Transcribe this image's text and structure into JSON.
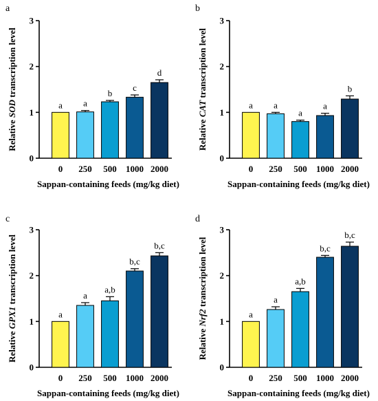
{
  "chart_data": [
    {
      "type": "bar",
      "panel": "a",
      "categories": [
        "0",
        "250",
        "500",
        "1000",
        "2000"
      ],
      "values": [
        1.0,
        1.01,
        1.23,
        1.33,
        1.65
      ],
      "errors": [
        0.0,
        0.03,
        0.03,
        0.05,
        0.06
      ],
      "labels": [
        "a",
        "a",
        "b",
        "c",
        "d"
      ],
      "ylabel_pre": "Relative ",
      "ylabel_gene": "SOD",
      "ylabel_post": " transcription level",
      "xlabel": "Sappan-containing feeds (mg/kg diet)",
      "ylim": [
        0,
        3
      ],
      "yticks": [
        "0",
        "1",
        "2",
        "3"
      ],
      "colors": [
        "#FFF44F",
        "#55CCF6",
        "#0A9ED1",
        "#0A5A92",
        "#0A3560"
      ]
    },
    {
      "type": "bar",
      "panel": "b",
      "categories": [
        "0",
        "250",
        "500",
        "1000",
        "2000"
      ],
      "values": [
        1.0,
        0.97,
        0.8,
        0.93,
        1.29
      ],
      "errors": [
        0.0,
        0.03,
        0.03,
        0.05,
        0.07
      ],
      "labels": [
        "a",
        "a",
        "a",
        "a",
        "b"
      ],
      "ylabel_pre": "Relative ",
      "ylabel_gene": "CAT",
      "ylabel_post": " transcription level",
      "xlabel": "Sappan-containing feeds (mg/kg diet)",
      "ylim": [
        0,
        3
      ],
      "yticks": [
        "0",
        "1",
        "2",
        "3"
      ],
      "colors": [
        "#FFF44F",
        "#55CCF6",
        "#0A9ED1",
        "#0A5A92",
        "#0A3560"
      ]
    },
    {
      "type": "bar",
      "panel": "c",
      "categories": [
        "0",
        "250",
        "500",
        "1000",
        "2000"
      ],
      "values": [
        1.0,
        1.35,
        1.45,
        2.1,
        2.43
      ],
      "errors": [
        0.0,
        0.06,
        0.09,
        0.05,
        0.07
      ],
      "labels": [
        "a",
        "a",
        "a,b",
        "b,c",
        "b,c"
      ],
      "ylabel_pre": "Relative ",
      "ylabel_gene": "GPX1",
      "ylabel_post": " transcription level",
      "xlabel": "Sappan-containing feeds (mg/kg diet)",
      "ylim": [
        0,
        3
      ],
      "yticks": [
        "0",
        "1",
        "2",
        "3"
      ],
      "colors": [
        "#FFF44F",
        "#55CCF6",
        "#0A9ED1",
        "#0A5A92",
        "#0A3560"
      ]
    },
    {
      "type": "bar",
      "panel": "d",
      "categories": [
        "0",
        "250",
        "500",
        "1000",
        "2000"
      ],
      "values": [
        1.0,
        1.26,
        1.65,
        2.4,
        2.64
      ],
      "errors": [
        0.0,
        0.06,
        0.07,
        0.04,
        0.09
      ],
      "labels": [
        "a",
        "a",
        "a,b",
        "b,c",
        "b,c"
      ],
      "ylabel_pre": "Relative ",
      "ylabel_gene": "Nrf2",
      "ylabel_post": " transcription level",
      "xlabel": "Sappan-containing feeds (mg/kg diet)",
      "ylim": [
        0,
        3
      ],
      "yticks": [
        "0",
        "1",
        "2",
        "3"
      ],
      "colors": [
        "#FFF44F",
        "#55CCF6",
        "#0A9ED1",
        "#0A5A92",
        "#0A3560"
      ]
    }
  ]
}
